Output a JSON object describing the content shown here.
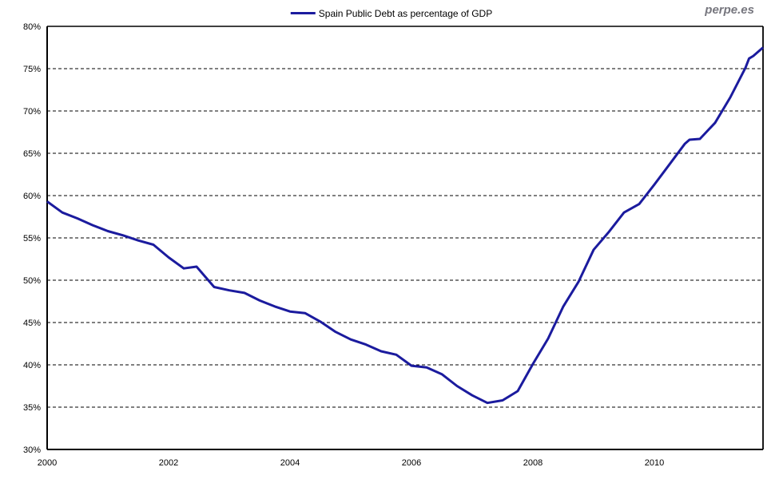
{
  "legend": {
    "label": "Spain Public Debt as percentage of GDP"
  },
  "watermark": {
    "text": "perpe.es",
    "color": "#76767e"
  },
  "chart_data": {
    "type": "line",
    "title": "Spain Public Debt as percentage of GDP",
    "xlabel": "",
    "ylabel": "",
    "xlim": [
      2000,
      2011.79
    ],
    "ylim": [
      30,
      80
    ],
    "xticks": [
      2000,
      2002,
      2004,
      2006,
      2008,
      2010
    ],
    "yticks": [
      30,
      35,
      40,
      45,
      50,
      55,
      60,
      65,
      70,
      75,
      80
    ],
    "ytick_suffix": "%",
    "grid": {
      "show": true,
      "style": "dashed",
      "color": "#000000",
      "lines_at": [
        35,
        40,
        45,
        50,
        55,
        60,
        65,
        70,
        75
      ]
    },
    "legend_position": "top-center",
    "frame_color": "#000000",
    "background": "#ffffff",
    "series": [
      {
        "name": "Spain Public Debt as percentage of GDP",
        "color": "#1b1b9e",
        "unit": "% of GDP",
        "frequency": "quarterly",
        "points": [
          [
            2000.0,
            59.3
          ],
          [
            2000.25,
            58.0
          ],
          [
            2000.5,
            57.3
          ],
          [
            2000.75,
            56.5
          ],
          [
            2001.0,
            55.8
          ],
          [
            2001.25,
            55.3
          ],
          [
            2001.5,
            54.7
          ],
          [
            2001.75,
            54.2
          ],
          [
            2002.0,
            52.7
          ],
          [
            2002.25,
            51.4
          ],
          [
            2002.46,
            51.6
          ],
          [
            2002.75,
            49.2
          ],
          [
            2003.0,
            48.8
          ],
          [
            2003.25,
            48.5
          ],
          [
            2003.5,
            47.6
          ],
          [
            2003.75,
            46.9
          ],
          [
            2004.0,
            46.3
          ],
          [
            2004.25,
            46.1
          ],
          [
            2004.5,
            45.1
          ],
          [
            2004.75,
            43.9
          ],
          [
            2005.0,
            43.0
          ],
          [
            2005.25,
            42.4
          ],
          [
            2005.5,
            41.6
          ],
          [
            2005.75,
            41.2
          ],
          [
            2006.0,
            39.9
          ],
          [
            2006.25,
            39.7
          ],
          [
            2006.5,
            38.9
          ],
          [
            2006.75,
            37.5
          ],
          [
            2007.0,
            36.4
          ],
          [
            2007.25,
            35.5
          ],
          [
            2007.5,
            35.8
          ],
          [
            2007.75,
            36.9
          ],
          [
            2008.0,
            40.1
          ],
          [
            2008.25,
            43.1
          ],
          [
            2008.5,
            46.9
          ],
          [
            2008.75,
            49.8
          ],
          [
            2009.0,
            53.6
          ],
          [
            2009.25,
            55.7
          ],
          [
            2009.5,
            58.0
          ],
          [
            2009.75,
            59.0
          ],
          [
            2010.0,
            61.3
          ],
          [
            2010.25,
            63.7
          ],
          [
            2010.5,
            66.1
          ],
          [
            2010.58,
            66.6
          ],
          [
            2010.75,
            66.7
          ],
          [
            2011.0,
            68.6
          ],
          [
            2011.25,
            71.6
          ],
          [
            2011.5,
            75.1
          ],
          [
            2011.56,
            76.2
          ],
          [
            2011.63,
            76.5
          ],
          [
            2011.79,
            77.5
          ]
        ]
      }
    ]
  }
}
